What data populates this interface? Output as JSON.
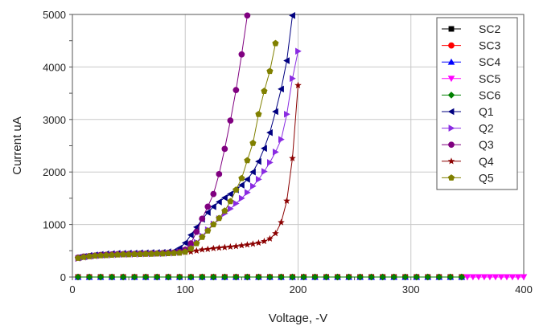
{
  "chart_data": {
    "type": "scatter",
    "xlabel": "Voltage, -V",
    "ylabel": "Current uA",
    "xlim": [
      0,
      400
    ],
    "ylim": [
      0,
      5000
    ],
    "x_ticks": [
      0,
      100,
      200,
      300,
      400
    ],
    "y_ticks": [
      0,
      1000,
      2000,
      3000,
      4000,
      5000
    ],
    "grid": true,
    "legend_position": "top-right",
    "series": [
      {
        "name": "SC2",
        "color": "#000000",
        "marker": "square",
        "x": [
          5,
          15,
          25,
          35,
          45,
          55,
          65,
          75,
          85,
          95,
          105,
          115,
          125,
          135,
          145,
          155,
          165,
          175,
          185,
          195,
          205,
          215,
          225,
          235,
          245,
          255,
          265,
          275,
          285,
          295,
          305,
          315,
          325,
          335,
          345
        ],
        "y": [
          0,
          0,
          0,
          0,
          0,
          0,
          0,
          0,
          0,
          0,
          0,
          0,
          0,
          0,
          0,
          0,
          0,
          0,
          0,
          0,
          0,
          0,
          0,
          0,
          0,
          0,
          0,
          0,
          0,
          0,
          0,
          0,
          0,
          0,
          0
        ]
      },
      {
        "name": "SC3",
        "color": "#ff0000",
        "marker": "circle",
        "x": [
          5,
          15,
          25,
          35,
          45,
          55,
          65,
          75,
          85,
          95,
          105,
          115,
          125,
          135,
          145,
          155,
          165,
          175,
          185,
          195,
          205,
          215,
          225,
          235,
          245,
          255,
          265,
          275,
          285,
          295,
          305,
          315,
          325,
          335,
          345
        ],
        "y": [
          0,
          0,
          0,
          0,
          0,
          0,
          0,
          0,
          0,
          0,
          0,
          0,
          0,
          0,
          0,
          0,
          0,
          0,
          0,
          0,
          0,
          0,
          0,
          0,
          0,
          0,
          0,
          0,
          0,
          0,
          0,
          0,
          0,
          0,
          0
        ]
      },
      {
        "name": "SC4",
        "color": "#0000ff",
        "marker": "triangle-up",
        "x": [
          5,
          15,
          25,
          35,
          45,
          55,
          65,
          75,
          85,
          95,
          105,
          115,
          125,
          135,
          145,
          155,
          165,
          175,
          185,
          195,
          205,
          215,
          225,
          235,
          245,
          255,
          265,
          275,
          285,
          295,
          305,
          315,
          325,
          335,
          345
        ],
        "y": [
          0,
          0,
          0,
          0,
          0,
          0,
          0,
          0,
          0,
          0,
          0,
          0,
          0,
          0,
          0,
          0,
          0,
          0,
          0,
          0,
          0,
          0,
          0,
          0,
          0,
          0,
          0,
          0,
          0,
          0,
          0,
          0,
          0,
          0,
          0
        ]
      },
      {
        "name": "SC5",
        "color": "#ff00ff",
        "marker": "triangle-down",
        "x": [
          350,
          355,
          360,
          365,
          370,
          375,
          380,
          385,
          390,
          395,
          400
        ],
        "y": [
          0,
          0,
          0,
          0,
          0,
          0,
          0,
          0,
          0,
          0,
          0
        ]
      },
      {
        "name": "SC6",
        "color": "#008000",
        "marker": "diamond",
        "x": [
          5,
          15,
          25,
          35,
          45,
          55,
          65,
          75,
          85,
          95,
          105,
          115,
          125,
          135,
          145,
          155,
          165,
          175,
          185,
          195,
          205,
          215,
          225,
          235,
          245,
          255,
          265,
          275,
          285,
          295,
          305,
          315,
          325,
          335,
          345
        ],
        "y": [
          0,
          0,
          0,
          0,
          0,
          0,
          0,
          0,
          0,
          0,
          0,
          0,
          0,
          0,
          0,
          0,
          0,
          0,
          0,
          0,
          0,
          0,
          0,
          0,
          0,
          0,
          0,
          0,
          0,
          0,
          0,
          0,
          0,
          0,
          0
        ]
      },
      {
        "name": "Q1",
        "color": "#000080",
        "marker": "triangle-left",
        "x": [
          5,
          10,
          15,
          20,
          25,
          30,
          35,
          40,
          45,
          50,
          55,
          60,
          65,
          70,
          75,
          80,
          85,
          90,
          95,
          100,
          105,
          110,
          115,
          120,
          125,
          130,
          135,
          140,
          145,
          150,
          155,
          160,
          165,
          170,
          175,
          180,
          185,
          190,
          195
        ],
        "y": [
          370,
          390,
          410,
          420,
          430,
          440,
          445,
          450,
          450,
          455,
          455,
          460,
          460,
          465,
          465,
          470,
          480,
          490,
          550,
          650,
          800,
          950,
          1100,
          1230,
          1340,
          1430,
          1510,
          1580,
          1660,
          1750,
          1860,
          2000,
          2200,
          2450,
          2750,
          3150,
          3580,
          4120,
          4980
        ]
      },
      {
        "name": "Q2",
        "color": "#8a2be2",
        "marker": "triangle-right",
        "x": [
          5,
          10,
          15,
          20,
          25,
          30,
          35,
          40,
          45,
          50,
          55,
          60,
          65,
          70,
          75,
          80,
          85,
          90,
          95,
          100,
          105,
          110,
          115,
          120,
          125,
          130,
          135,
          140,
          145,
          150,
          155,
          160,
          165,
          170,
          175,
          180,
          185,
          190,
          195,
          200
        ],
        "y": [
          355,
          375,
          390,
          400,
          410,
          415,
          420,
          425,
          430,
          430,
          435,
          435,
          440,
          440,
          445,
          445,
          450,
          455,
          470,
          500,
          560,
          660,
          780,
          900,
          1010,
          1110,
          1210,
          1300,
          1400,
          1500,
          1610,
          1730,
          1860,
          2010,
          2180,
          2380,
          2620,
          3100,
          3780,
          4300
        ]
      },
      {
        "name": "Q3",
        "color": "#800080",
        "marker": "circle",
        "x": [
          5,
          10,
          15,
          20,
          25,
          30,
          35,
          40,
          45,
          50,
          55,
          60,
          65,
          70,
          75,
          80,
          85,
          90,
          95,
          100,
          105,
          110,
          115,
          120,
          125,
          130,
          135,
          140,
          145,
          150,
          155
        ],
        "y": [
          370,
          390,
          400,
          410,
          420,
          425,
          430,
          435,
          435,
          440,
          440,
          445,
          445,
          450,
          450,
          455,
          460,
          465,
          480,
          520,
          640,
          860,
          1110,
          1340,
          1580,
          1960,
          2440,
          2980,
          3560,
          4240,
          4980
        ]
      },
      {
        "name": "Q4",
        "color": "#8b0000",
        "marker": "star",
        "x": [
          5,
          10,
          15,
          20,
          25,
          30,
          35,
          40,
          45,
          50,
          55,
          60,
          65,
          70,
          75,
          80,
          85,
          90,
          95,
          100,
          105,
          110,
          115,
          120,
          125,
          130,
          135,
          140,
          145,
          150,
          155,
          160,
          165,
          170,
          175,
          180,
          185,
          190,
          195,
          200
        ],
        "y": [
          350,
          370,
          385,
          395,
          405,
          410,
          415,
          420,
          425,
          430,
          430,
          435,
          440,
          440,
          445,
          450,
          450,
          455,
          460,
          470,
          480,
          500,
          520,
          530,
          545,
          555,
          565,
          575,
          585,
          600,
          615,
          630,
          650,
          680,
          730,
          830,
          1040,
          1450,
          2260,
          3650
        ]
      },
      {
        "name": "Q5",
        "color": "#808000",
        "marker": "pentagon",
        "x": [
          5,
          10,
          15,
          20,
          25,
          30,
          35,
          40,
          45,
          50,
          55,
          60,
          65,
          70,
          75,
          80,
          85,
          90,
          95,
          100,
          105,
          110,
          115,
          120,
          125,
          130,
          135,
          140,
          145,
          150,
          155,
          160,
          165,
          170,
          175,
          180
        ],
        "y": [
          360,
          380,
          395,
          405,
          410,
          415,
          420,
          425,
          430,
          430,
          435,
          435,
          440,
          440,
          445,
          445,
          450,
          455,
          460,
          480,
          540,
          640,
          760,
          880,
          1000,
          1120,
          1260,
          1440,
          1660,
          1880,
          2220,
          2550,
          3100,
          3540,
          3920,
          4450
        ]
      }
    ]
  }
}
